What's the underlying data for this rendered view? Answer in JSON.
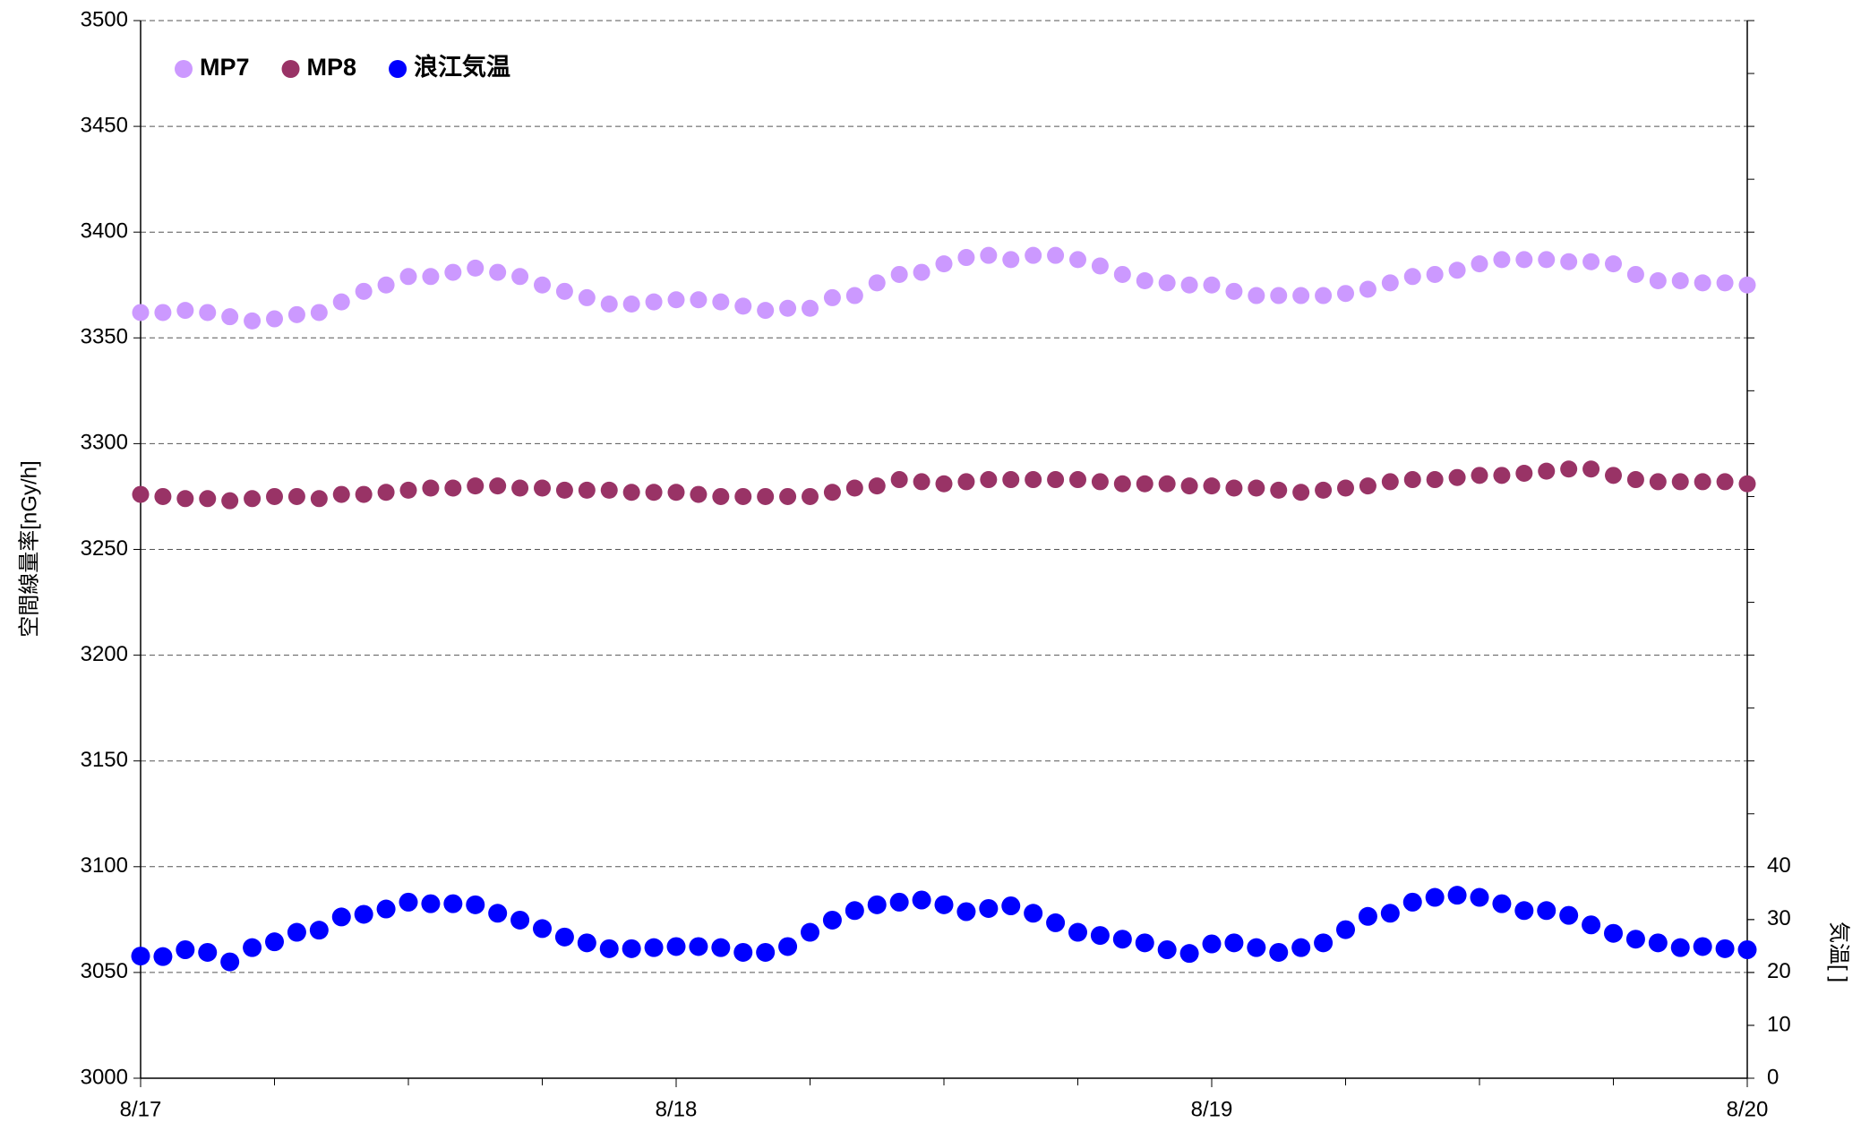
{
  "chart_data": {
    "type": "scatter",
    "ylabel": "空間線量率[nGy/h]",
    "y2label": "気温[ ]",
    "x": [
      0,
      1,
      2,
      3,
      4,
      5,
      6,
      7,
      8,
      9,
      10,
      11,
      12,
      13,
      14,
      15,
      16,
      17,
      18,
      19,
      20,
      21,
      22,
      23,
      24,
      25,
      26,
      27,
      28,
      29,
      30,
      31,
      32,
      33,
      34,
      35,
      36,
      37,
      38,
      39,
      40,
      41,
      42,
      43,
      44,
      45,
      46,
      47,
      48,
      49,
      50,
      51,
      52,
      53,
      54,
      55,
      56,
      57,
      58,
      59,
      60,
      61,
      62,
      63,
      64,
      65,
      66,
      67,
      68,
      69,
      70,
      71,
      72
    ],
    "xlim": [
      0,
      72
    ],
    "xticks": [
      {
        "value": 0,
        "label": "8/17"
      },
      {
        "value": 24,
        "label": "8/18"
      },
      {
        "value": 48,
        "label": "8/19"
      },
      {
        "value": 72,
        "label": "8/20"
      }
    ],
    "ylim": [
      3000,
      3500
    ],
    "yticks": [
      3000,
      3050,
      3100,
      3150,
      3200,
      3250,
      3300,
      3350,
      3400,
      3450,
      3500
    ],
    "y2lim": [
      0,
      200
    ],
    "y2ticks": [
      0,
      10,
      20,
      30,
      40
    ],
    "grid": true,
    "legend": "upper left",
    "series": [
      {
        "name": "MP7",
        "color": "#cc99ff",
        "values": [
          3362,
          3362,
          3363,
          3362,
          3360,
          3358,
          3359,
          3361,
          3362,
          3367,
          3372,
          3375,
          3379,
          3379,
          3381,
          3383,
          3381,
          3379,
          3375,
          3372,
          3369,
          3366,
          3366,
          3367,
          3368,
          3368,
          3367,
          3365,
          3363,
          3364,
          3364,
          3369,
          3370,
          3376,
          3380,
          3381,
          3385,
          3388,
          3389,
          3387,
          3389,
          3389,
          3387,
          3384,
          3380,
          3377,
          3376,
          3375,
          3375,
          3372,
          3370,
          3370,
          3370,
          3370,
          3371,
          3373,
          3376,
          3379,
          3380,
          3382,
          3385,
          3387,
          3387,
          3387,
          3386,
          3386,
          3385,
          3380,
          3377,
          3377,
          3376,
          3376,
          3375
        ]
      },
      {
        "name": "MP8",
        "color": "#993366",
        "values": [
          3276,
          3275,
          3274,
          3274,
          3273,
          3274,
          3275,
          3275,
          3274,
          3276,
          3276,
          3277,
          3278,
          3279,
          3279,
          3280,
          3280,
          3279,
          3279,
          3278,
          3278,
          3278,
          3277,
          3277,
          3277,
          3276,
          3275,
          3275,
          3275,
          3275,
          3275,
          3277,
          3279,
          3280,
          3283,
          3282,
          3281,
          3282,
          3283,
          3283,
          3283,
          3283,
          3283,
          3282,
          3281,
          3281,
          3281,
          3280,
          3280,
          3279,
          3279,
          3278,
          3277,
          3278,
          3279,
          3280,
          3282,
          3283,
          3283,
          3284,
          3285,
          3285,
          3286,
          3287,
          3288,
          3288,
          3285,
          3283,
          3282,
          3282,
          3282,
          3282,
          3281
        ]
      },
      {
        "name": "浪江気温",
        "color": "#0000ff",
        "axis": "y2",
        "values": [
          23.1,
          23,
          24.3,
          23.8,
          22,
          24.7,
          25.8,
          27.6,
          28,
          30.5,
          31,
          32,
          33.3,
          33,
          33,
          32.8,
          31.2,
          29.9,
          28.3,
          26.7,
          25.6,
          24.5,
          24.5,
          24.7,
          24.9,
          24.9,
          24.7,
          23.8,
          23.8,
          24.9,
          27.6,
          29.9,
          31.7,
          32.8,
          33.3,
          33.7,
          32.8,
          31.5,
          32.1,
          32.6,
          31.2,
          29.4,
          27.6,
          27,
          26.3,
          25.6,
          24.3,
          23.6,
          25.4,
          25.6,
          24.7,
          23.8,
          24.7,
          25.6,
          28.1,
          30.6,
          31.2,
          33.3,
          34.2,
          34.6,
          34.2,
          33,
          31.7,
          31.7,
          30.8,
          29,
          27.4,
          26.3,
          25.6,
          24.7,
          24.9,
          24.5,
          24.3
        ]
      }
    ]
  }
}
